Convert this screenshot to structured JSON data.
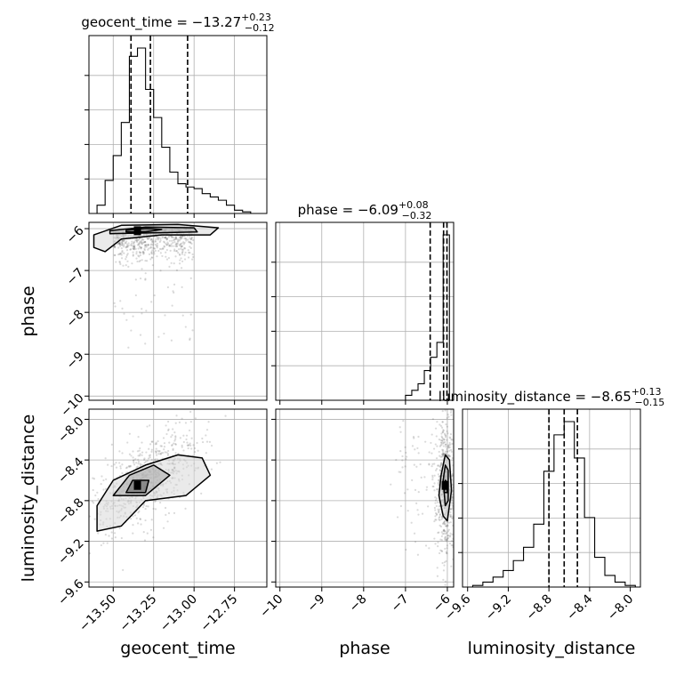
{
  "chart_data": {
    "type": "corner",
    "parameters": [
      {
        "name": "geocent_time",
        "median": -13.27,
        "plus": 0.23,
        "minus": 0.12,
        "title_text": "geocent_time = −13.27",
        "title_sup": "+0.23",
        "title_sub": "−0.12",
        "range": [
          -13.65,
          -12.55
        ],
        "ticks": [
          -13.5,
          -13.25,
          -13.0,
          -12.75
        ],
        "tick_labels": [
          "−13.50",
          "−13.25",
          "−13.00",
          "−12.75"
        ],
        "quantiles": [
          -13.39,
          -13.27,
          -13.04
        ],
        "hist_bins": [
          -13.65,
          -13.6,
          -13.55,
          -13.5,
          -13.45,
          -13.4,
          -13.35,
          -13.3,
          -13.25,
          -13.2,
          -13.15,
          -13.1,
          -13.05,
          -13.0,
          -12.95,
          -12.9,
          -12.85,
          -12.8,
          -12.75,
          -12.7,
          -12.65,
          -12.6
        ],
        "hist_counts": [
          0,
          0.05,
          0.2,
          0.35,
          0.55,
          0.95,
          1.0,
          0.75,
          0.58,
          0.4,
          0.25,
          0.18,
          0.16,
          0.15,
          0.12,
          0.1,
          0.08,
          0.05,
          0.02,
          0.01,
          0
        ]
      },
      {
        "name": "phase",
        "median": -6.09,
        "plus": 0.08,
        "minus": 0.32,
        "title_text": "phase = −6.09",
        "title_sup": "+0.08",
        "title_sub": "−0.32",
        "range": [
          -10.1,
          -5.85
        ],
        "ticks": [
          -10,
          -9,
          -8,
          -7,
          -6
        ],
        "tick_labels": [
          "−10",
          "−9",
          "−8",
          "−7",
          "−6"
        ],
        "quantiles": [
          -6.41,
          -6.09,
          -6.01
        ],
        "hist_bins": [
          -7.0,
          -6.85,
          -6.7,
          -6.55,
          -6.4,
          -6.25,
          -6.1,
          -5.95
        ],
        "hist_counts": [
          0.03,
          0.06,
          0.1,
          0.18,
          0.26,
          0.35,
          1.0
        ]
      },
      {
        "name": "luminosity_distance",
        "median": -8.65,
        "plus": 0.13,
        "minus": 0.15,
        "title_text": "luminosity_distance = −8.65",
        "title_sup": "+0.13",
        "title_sub": "−0.15",
        "range": [
          -9.65,
          -7.9
        ],
        "ticks": [
          -9.6,
          -9.2,
          -8.8,
          -8.4,
          -8.0
        ],
        "tick_labels": [
          "−9.6",
          "−9.2",
          "−8.8",
          "−8.4",
          "−8.0"
        ],
        "quantiles": [
          -8.8,
          -8.65,
          -8.52
        ],
        "hist_bins": [
          -9.65,
          -9.55,
          -9.45,
          -9.35,
          -9.25,
          -9.15,
          -9.05,
          -8.95,
          -8.85,
          -8.75,
          -8.65,
          -8.55,
          -8.45,
          -8.35,
          -8.25,
          -8.15,
          -8.05,
          -7.95
        ],
        "hist_counts": [
          0,
          0.01,
          0.03,
          0.06,
          0.1,
          0.16,
          0.24,
          0.38,
          0.7,
          0.92,
          1.0,
          0.78,
          0.42,
          0.18,
          0.07,
          0.03,
          0.01
        ]
      }
    ],
    "pairs": [
      {
        "x": "geocent_time",
        "y": "phase",
        "y_ticks": [
          -10,
          -9,
          -8,
          -7,
          -6
        ],
        "y_tick_labels": [
          "−10",
          "−9",
          "−8",
          "−7",
          "−6"
        ],
        "peak": [
          -13.35,
          -6.05
        ],
        "contours": [
          [
            [
              -13.62,
              -6.15
            ],
            [
              -13.45,
              -5.92
            ],
            [
              -13.1,
              -5.9
            ],
            [
              -12.85,
              -5.98
            ],
            [
              -12.9,
              -6.15
            ],
            [
              -13.2,
              -6.15
            ],
            [
              -13.45,
              -6.25
            ],
            [
              -13.55,
              -6.55
            ],
            [
              -13.62,
              -6.45
            ]
          ],
          [
            [
              -13.52,
              -6.05
            ],
            [
              -13.3,
              -5.96
            ],
            [
              -13.0,
              -5.98
            ],
            [
              -12.98,
              -6.08
            ],
            [
              -13.25,
              -6.1
            ],
            [
              -13.52,
              -6.12
            ]
          ],
          [
            [
              -13.42,
              -6.04
            ],
            [
              -13.3,
              -5.99
            ],
            [
              -13.2,
              -6.02
            ],
            [
              -13.3,
              -6.08
            ],
            [
              -13.42,
              -6.08
            ]
          ]
        ]
      },
      {
        "x": "geocent_time",
        "y": "luminosity_distance",
        "y_ticks": [
          -9.6,
          -9.2,
          -8.8,
          -8.4,
          -8.0
        ],
        "y_tick_labels": [
          "−9.6",
          "−9.2",
          "−8.8",
          "−8.4",
          "−8.0"
        ],
        "peak": [
          -13.35,
          -8.65
        ],
        "contours": [
          [
            [
              -13.6,
              -8.85
            ],
            [
              -13.5,
              -8.6
            ],
            [
              -13.3,
              -8.45
            ],
            [
              -13.1,
              -8.35
            ],
            [
              -12.95,
              -8.38
            ],
            [
              -12.9,
              -8.55
            ],
            [
              -13.05,
              -8.75
            ],
            [
              -13.3,
              -8.8
            ],
            [
              -13.45,
              -9.05
            ],
            [
              -13.6,
              -9.1
            ]
          ],
          [
            [
              -13.5,
              -8.75
            ],
            [
              -13.4,
              -8.55
            ],
            [
              -13.25,
              -8.45
            ],
            [
              -13.15,
              -8.55
            ],
            [
              -13.3,
              -8.75
            ]
          ],
          [
            [
              -13.42,
              -8.72
            ],
            [
              -13.38,
              -8.6
            ],
            [
              -13.28,
              -8.6
            ],
            [
              -13.3,
              -8.72
            ]
          ]
        ]
      },
      {
        "x": "phase",
        "y": "luminosity_distance",
        "y_ticks": [
          -9.6,
          -9.2,
          -8.8,
          -8.4,
          -8.0
        ],
        "y_tick_labels": [],
        "peak": [
          -6.05,
          -8.65
        ],
        "contours": [
          [
            [
              -6.15,
              -8.55
            ],
            [
              -6.05,
              -8.35
            ],
            [
              -5.95,
              -8.4
            ],
            [
              -5.9,
              -8.7
            ],
            [
              -6.0,
              -9.0
            ],
            [
              -6.1,
              -8.95
            ],
            [
              -6.2,
              -8.75
            ]
          ],
          [
            [
              -6.1,
              -8.6
            ],
            [
              -6.05,
              -8.45
            ],
            [
              -5.98,
              -8.5
            ],
            [
              -5.98,
              -8.8
            ],
            [
              -6.05,
              -8.85
            ]
          ],
          [
            [
              -6.08,
              -8.72
            ],
            [
              -6.05,
              -8.6
            ],
            [
              -6.0,
              -8.62
            ],
            [
              -6.0,
              -8.72
            ]
          ]
        ]
      }
    ]
  }
}
